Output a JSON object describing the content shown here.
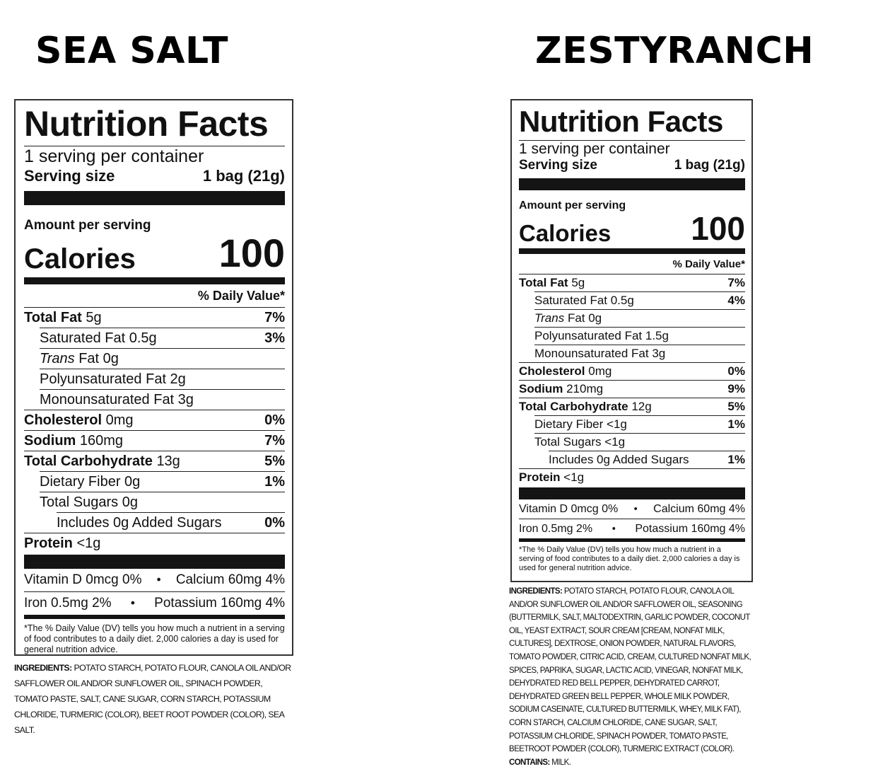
{
  "labels": {
    "sea": {
      "flavor": "SEA SALT",
      "title": "Nutrition Facts",
      "servings": "1 serving per container",
      "serving_size_label": "Serving size",
      "serving_size_value": "1 bag (21g)",
      "amount_per_serving": "Amount per serving",
      "calories_label": "Calories",
      "calories_value": "100",
      "dv_header": "% Daily Value*",
      "rows": {
        "total_fat": {
          "name": "Total Fat",
          "amount": "5g",
          "dv": "7%"
        },
        "saturated_fat": {
          "name": "Saturated Fat 0.5g",
          "dv": "3%"
        },
        "trans_fat": {
          "name": "Trans",
          "amount": "Fat 0g"
        },
        "polyunsaturated_fat": {
          "name": "Polyunsaturated Fat 2g"
        },
        "monounsaturated_fat": {
          "name": "Monounsaturated Fat 3g"
        },
        "cholesterol": {
          "name": "Cholesterol",
          "amount": "0mg",
          "dv": "0%"
        },
        "sodium": {
          "name": "Sodium",
          "amount": "160mg",
          "dv": "7%"
        },
        "total_carbohydrate": {
          "name": "Total Carbohydrate",
          "amount": "13g",
          "dv": "5%"
        },
        "dietary_fiber": {
          "name": "Dietary Fiber 0g",
          "dv": "1%"
        },
        "total_sugars": {
          "name": "Total Sugars 0g"
        },
        "added_sugars": {
          "name": "Includes 0g Added Sugars",
          "dv": "0%"
        },
        "protein": {
          "name": "Protein",
          "amount": "<1g"
        }
      },
      "vitamins": {
        "vitamin_d": "Vitamin D 0mcg 0%",
        "calcium": "Calcium 60mg 4%",
        "iron": "Iron 0.5mg 2%",
        "potassium": "Potassium 160mg 4%",
        "dot": "•"
      },
      "footnote": "*The % Daily Value (DV) tells you how much a nutrient in a serving of food contributes to a daily diet. 2,000 calories a day is used for general nutrition advice.",
      "ingredients_label": "INGREDIENTS:",
      "ingredients_text": "POTATO STARCH, POTATO FLOUR, CANOLA OIL AND/OR SAFFLOWER OIL AND/OR SUNFLOWER OIL, SPINACH POWDER, TOMATO PASTE, SALT, CANE SUGAR, CORN STARCH, POTASSIUM CHLORIDE, TURMERIC (COLOR), BEET ROOT POWDER (COLOR), SEA SALT."
    },
    "ranch": {
      "flavor": "ZESTYRANCH",
      "title": "Nutrition Facts",
      "servings": "1 serving per container",
      "serving_size_label": "Serving size",
      "serving_size_value": "1 bag (21g)",
      "amount_per_serving": "Amount per serving",
      "calories_label": "Calories",
      "calories_value": "100",
      "dv_header": "% Daily Value*",
      "rows": {
        "total_fat": {
          "name": "Total Fat",
          "amount": "5g",
          "dv": "7%"
        },
        "saturated_fat": {
          "name": "Saturated Fat 0.5g",
          "dv": "4%"
        },
        "trans_fat": {
          "name": "Trans",
          "amount": "Fat 0g"
        },
        "polyunsaturated_fat": {
          "name": "Polyunsaturated Fat 1.5g"
        },
        "monounsaturated_fat": {
          "name": "Monounsaturated Fat 3g"
        },
        "cholesterol": {
          "name": "Cholesterol",
          "amount": "0mg",
          "dv": "0%"
        },
        "sodium": {
          "name": "Sodium",
          "amount": "210mg",
          "dv": "9%"
        },
        "total_carbohydrate": {
          "name": "Total Carbohydrate",
          "amount": "12g",
          "dv": "5%"
        },
        "dietary_fiber": {
          "name": "Dietary Fiber <1g",
          "dv": "1%"
        },
        "total_sugars": {
          "name": "Total Sugars <1g"
        },
        "added_sugars": {
          "name": "Includes 0g Added Sugars",
          "dv": "1%"
        },
        "protein": {
          "name": "Protein",
          "amount": "<1g"
        }
      },
      "vitamins": {
        "vitamin_d": "Vitamin D 0mcg 0%",
        "calcium": "Calcium 60mg 4%",
        "iron": "Iron 0.5mg 2%",
        "potassium": "Potassium 160mg 4%",
        "dot": "•"
      },
      "footnote": "*The % Daily Value (DV) tells you how much a nutrient in a serving of food contributes to a daily diet. 2,000 calories a day is used for general nutrition advice.",
      "ingredients_label": "INGREDIENTS:",
      "ingredients_text": "POTATO STARCH, POTATO FLOUR, CANOLA OIL AND/OR SUNFLOWER OIL AND/OR SAFFLOWER OIL, SEASONING (BUTTERMILK, SALT, MALTODEXTRIN, GARLIC POWDER, COCONUT OIL, YEAST EXTRACT, SOUR CREAM [CREAM, NONFAT MILK, CULTURES], DEXTROSE, ONION POWDER, NATURAL FLAVORS, TOMATO POWDER, CITRIC ACID, CREAM, CULTURED NONFAT MILK, SPICES, PAPRIKA, SUGAR, LACTIC ACID, VINEGAR, NONFAT MILK, DEHYDRATED RED BELL PEPPER, DEHYDRATED CARROT, DEHYDRATED GREEN BELL PEPPER, WHOLE MILK POWDER, SODIUM CASEINATE, CULTURED BUTTERMILK, WHEY, MILK FAT), CORN STARCH, CALCIUM CHLORIDE, CANE SUGAR, SALT, POTASSIUM CHLORIDE, SPINACH POWDER, TOMATO PASTE, BEETROOT POWDER (COLOR), TURMERIC EXTRACT (COLOR).",
      "contains_label": "CONTAINS:",
      "contains_text": "MILK."
    }
  }
}
